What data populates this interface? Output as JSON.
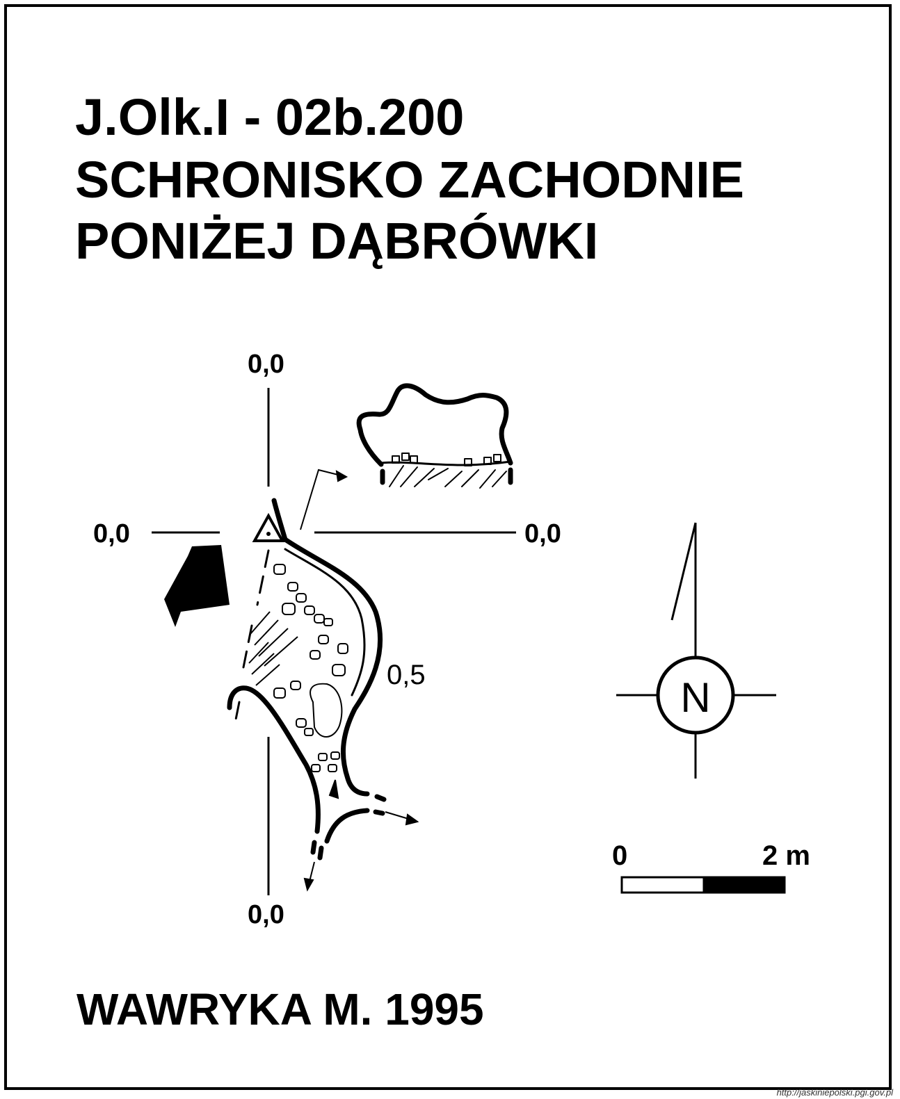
{
  "header": {
    "code": "J.Olk.I - 02b.200",
    "name_line1": "SCHRONISKO ZACHODNIE",
    "name_line2": "PONIŻEJ DĄBRÓWKI"
  },
  "plan": {
    "axis_top_label": "0,0",
    "axis_left_label": "0,0",
    "axis_right_label": "0,0",
    "axis_bottom_label": "0,0",
    "depth_label": "0,5"
  },
  "compass": {
    "north_label": "N"
  },
  "scale_bar": {
    "start_label": "0",
    "end_label": "2 m"
  },
  "footer": {
    "author_date": "WAWRYKA M. 1995",
    "source_url": "http://jaskiniepolski.pgi.gov.pl"
  }
}
